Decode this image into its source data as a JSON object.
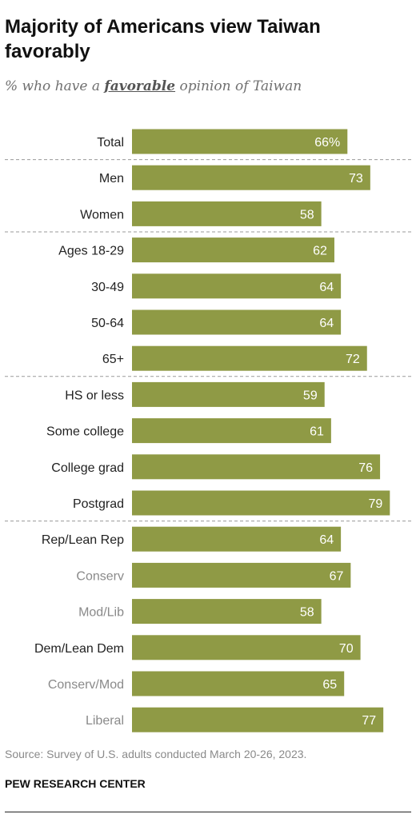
{
  "title": "Majority of Americans view Taiwan favorably",
  "subtitle": {
    "before": "% who have a ",
    "emphasis": "favorable",
    "after": " opinion of Taiwan"
  },
  "source": "Source: Survey of U.S. adults conducted March 20-26, 2023.",
  "organization": "PEW RESEARCH CENTER",
  "colors": {
    "bar": "#8f9a45",
    "bar_label": "#ffffff",
    "category_label": "#222222",
    "subgroup_label": "#8a8a8a",
    "divider": "#9a9a9a"
  },
  "chart_data": {
    "type": "bar",
    "orientation": "horizontal",
    "categories": [
      "Total",
      "Men",
      "Women",
      "Ages 18-29",
      "30-49",
      "50-64",
      "65+",
      "HS or less",
      "Some college",
      "College grad",
      "Postgrad",
      "Rep/Lean Rep",
      "Conserv",
      "Mod/Lib",
      "Dem/Lean Dem",
      "Conserv/Mod",
      "Liberal"
    ],
    "values": [
      66,
      73,
      58,
      62,
      64,
      64,
      72,
      59,
      61,
      76,
      79,
      64,
      67,
      58,
      70,
      65,
      77
    ],
    "value_labels": [
      "66%",
      "73",
      "58",
      "62",
      "64",
      "64",
      "72",
      "59",
      "61",
      "76",
      "79",
      "64",
      "67",
      "58",
      "70",
      "65",
      "77"
    ],
    "subgroup": [
      false,
      false,
      false,
      false,
      false,
      false,
      false,
      false,
      false,
      false,
      false,
      false,
      true,
      true,
      false,
      true,
      true
    ],
    "groups": [
      [
        0
      ],
      [
        1,
        2
      ],
      [
        3,
        4,
        5,
        6
      ],
      [
        7,
        8,
        9,
        10
      ],
      [
        11,
        12,
        13,
        14,
        15,
        16
      ]
    ],
    "xlim": [
      0,
      100
    ],
    "xlabel": "",
    "ylabel": "",
    "grid": false,
    "legend": "none"
  }
}
